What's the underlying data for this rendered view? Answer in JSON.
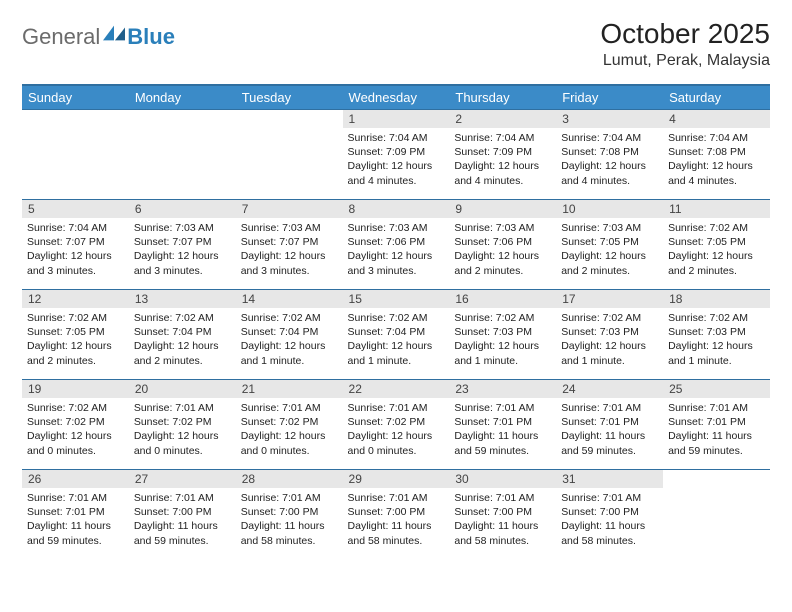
{
  "logo": {
    "part1": "General",
    "part2": "Blue"
  },
  "title": "October 2025",
  "location": "Lumut, Perak, Malaysia",
  "colors": {
    "header_bg": "#3b8bc8",
    "header_rule": "#2f6fa0",
    "daynum_bg": "#e7e7e7",
    "logo_gray": "#6b6b6b",
    "logo_blue": "#2a7fba"
  },
  "day_headers": [
    "Sunday",
    "Monday",
    "Tuesday",
    "Wednesday",
    "Thursday",
    "Friday",
    "Saturday"
  ],
  "weeks": [
    [
      null,
      null,
      null,
      {
        "n": "1",
        "sunrise": "7:04 AM",
        "sunset": "7:09 PM",
        "daylight": "12 hours and 4 minutes."
      },
      {
        "n": "2",
        "sunrise": "7:04 AM",
        "sunset": "7:09 PM",
        "daylight": "12 hours and 4 minutes."
      },
      {
        "n": "3",
        "sunrise": "7:04 AM",
        "sunset": "7:08 PM",
        "daylight": "12 hours and 4 minutes."
      },
      {
        "n": "4",
        "sunrise": "7:04 AM",
        "sunset": "7:08 PM",
        "daylight": "12 hours and 4 minutes."
      }
    ],
    [
      {
        "n": "5",
        "sunrise": "7:04 AM",
        "sunset": "7:07 PM",
        "daylight": "12 hours and 3 minutes."
      },
      {
        "n": "6",
        "sunrise": "7:03 AM",
        "sunset": "7:07 PM",
        "daylight": "12 hours and 3 minutes."
      },
      {
        "n": "7",
        "sunrise": "7:03 AM",
        "sunset": "7:07 PM",
        "daylight": "12 hours and 3 minutes."
      },
      {
        "n": "8",
        "sunrise": "7:03 AM",
        "sunset": "7:06 PM",
        "daylight": "12 hours and 3 minutes."
      },
      {
        "n": "9",
        "sunrise": "7:03 AM",
        "sunset": "7:06 PM",
        "daylight": "12 hours and 2 minutes."
      },
      {
        "n": "10",
        "sunrise": "7:03 AM",
        "sunset": "7:05 PM",
        "daylight": "12 hours and 2 minutes."
      },
      {
        "n": "11",
        "sunrise": "7:02 AM",
        "sunset": "7:05 PM",
        "daylight": "12 hours and 2 minutes."
      }
    ],
    [
      {
        "n": "12",
        "sunrise": "7:02 AM",
        "sunset": "7:05 PM",
        "daylight": "12 hours and 2 minutes."
      },
      {
        "n": "13",
        "sunrise": "7:02 AM",
        "sunset": "7:04 PM",
        "daylight": "12 hours and 2 minutes."
      },
      {
        "n": "14",
        "sunrise": "7:02 AM",
        "sunset": "7:04 PM",
        "daylight": "12 hours and 1 minute."
      },
      {
        "n": "15",
        "sunrise": "7:02 AM",
        "sunset": "7:04 PM",
        "daylight": "12 hours and 1 minute."
      },
      {
        "n": "16",
        "sunrise": "7:02 AM",
        "sunset": "7:03 PM",
        "daylight": "12 hours and 1 minute."
      },
      {
        "n": "17",
        "sunrise": "7:02 AM",
        "sunset": "7:03 PM",
        "daylight": "12 hours and 1 minute."
      },
      {
        "n": "18",
        "sunrise": "7:02 AM",
        "sunset": "7:03 PM",
        "daylight": "12 hours and 1 minute."
      }
    ],
    [
      {
        "n": "19",
        "sunrise": "7:02 AM",
        "sunset": "7:02 PM",
        "daylight": "12 hours and 0 minutes."
      },
      {
        "n": "20",
        "sunrise": "7:01 AM",
        "sunset": "7:02 PM",
        "daylight": "12 hours and 0 minutes."
      },
      {
        "n": "21",
        "sunrise": "7:01 AM",
        "sunset": "7:02 PM",
        "daylight": "12 hours and 0 minutes."
      },
      {
        "n": "22",
        "sunrise": "7:01 AM",
        "sunset": "7:02 PM",
        "daylight": "12 hours and 0 minutes."
      },
      {
        "n": "23",
        "sunrise": "7:01 AM",
        "sunset": "7:01 PM",
        "daylight": "11 hours and 59 minutes."
      },
      {
        "n": "24",
        "sunrise": "7:01 AM",
        "sunset": "7:01 PM",
        "daylight": "11 hours and 59 minutes."
      },
      {
        "n": "25",
        "sunrise": "7:01 AM",
        "sunset": "7:01 PM",
        "daylight": "11 hours and 59 minutes."
      }
    ],
    [
      {
        "n": "26",
        "sunrise": "7:01 AM",
        "sunset": "7:01 PM",
        "daylight": "11 hours and 59 minutes."
      },
      {
        "n": "27",
        "sunrise": "7:01 AM",
        "sunset": "7:00 PM",
        "daylight": "11 hours and 59 minutes."
      },
      {
        "n": "28",
        "sunrise": "7:01 AM",
        "sunset": "7:00 PM",
        "daylight": "11 hours and 58 minutes."
      },
      {
        "n": "29",
        "sunrise": "7:01 AM",
        "sunset": "7:00 PM",
        "daylight": "11 hours and 58 minutes."
      },
      {
        "n": "30",
        "sunrise": "7:01 AM",
        "sunset": "7:00 PM",
        "daylight": "11 hours and 58 minutes."
      },
      {
        "n": "31",
        "sunrise": "7:01 AM",
        "sunset": "7:00 PM",
        "daylight": "11 hours and 58 minutes."
      },
      null
    ]
  ],
  "labels": {
    "sunrise": "Sunrise:",
    "sunset": "Sunset:",
    "daylight": "Daylight:"
  }
}
